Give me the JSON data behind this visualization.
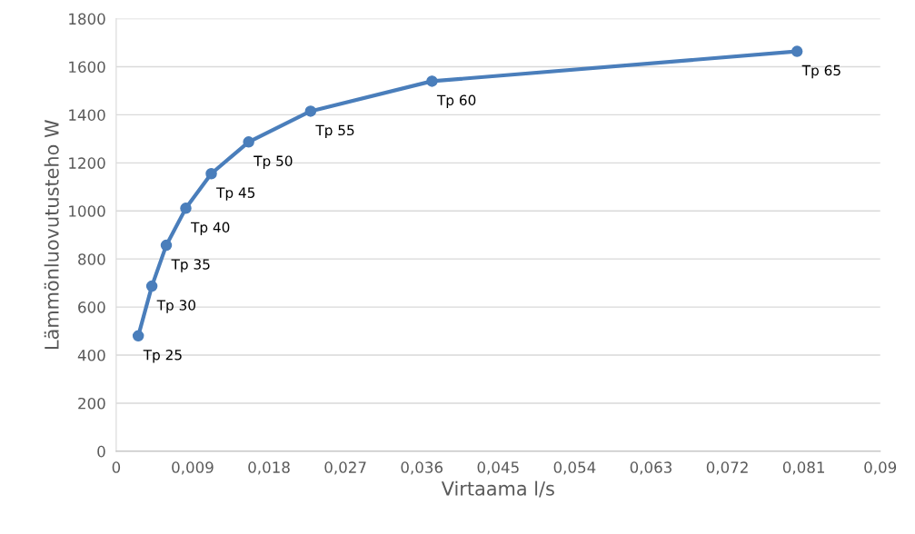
{
  "chart_data": {
    "type": "line",
    "xlabel": "Virtaama l/s",
    "ylabel": "Lämmönluovutusteho W",
    "x": [
      0.0026,
      0.0042,
      0.0059,
      0.0082,
      0.0112,
      0.0156,
      0.0229,
      0.0372,
      0.0802
    ],
    "series": [
      {
        "color": "#4a7ebb",
        "values": [
          480,
          687,
          857,
          1011,
          1155,
          1287,
          1415,
          1540,
          1664
        ]
      }
    ],
    "xlim": [
      0,
      0.09
    ],
    "xticks": [
      0,
      {
        "value": 0.009,
        "label": "0,009"
      },
      {
        "value": 0.018,
        "label": "0,018"
      },
      {
        "value": 0.027,
        "label": "0,027"
      },
      {
        "value": 0.036,
        "label": "0,036"
      },
      {
        "value": 0.045,
        "label": "0,045"
      },
      {
        "value": 0.054,
        "label": "0,054"
      },
      {
        "value": 0.063,
        "label": "0,063"
      },
      {
        "value": 0.072,
        "label": "0,072"
      },
      {
        "value": 0.081,
        "label": "0,081"
      },
      {
        "value": 0.09,
        "label": "0,09"
      }
    ],
    "ylim": [
      0,
      1800
    ],
    "yticks": [
      0,
      200,
      400,
      600,
      800,
      1000,
      1200,
      1400,
      1600,
      1800
    ],
    "grid": "y",
    "marker": "circle",
    "line_style": "solid",
    "legend": false,
    "annotations": [
      {
        "text": "Tp 25",
        "x": 0.0026,
        "y": 480
      },
      {
        "text": "Tp 30",
        "x": 0.0042,
        "y": 687
      },
      {
        "text": "Tp 35",
        "x": 0.0059,
        "y": 857
      },
      {
        "text": "Tp 40",
        "x": 0.0082,
        "y": 1011
      },
      {
        "text": "Tp 45",
        "x": 0.0112,
        "y": 1155
      },
      {
        "text": "Tp 50",
        "x": 0.0156,
        "y": 1287
      },
      {
        "text": "Tp 55",
        "x": 0.0229,
        "y": 1415
      },
      {
        "text": "Tp 60",
        "x": 0.0372,
        "y": 1540
      },
      {
        "text": "Tp 65",
        "x": 0.0802,
        "y": 1664
      }
    ]
  }
}
